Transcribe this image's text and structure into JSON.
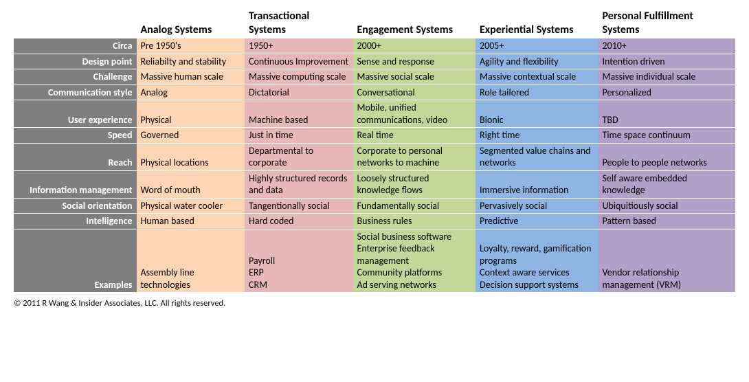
{
  "colors": {
    "label_bg": "#7f7f7f",
    "label_text": "#ffffff",
    "col_bg": [
      "#fcd5b4",
      "#e6b8b7",
      "#c4d79b",
      "#8db4e2",
      "#b1a0c7"
    ],
    "header_bg": "#ffffff",
    "text": "#000000"
  },
  "columns": [
    "Analog Systems",
    "Transactional Systems",
    "Engagement Systems",
    "Experiential Systems",
    "Personal Fulfillment Systems"
  ],
  "rows": [
    {
      "label": "Circa",
      "cells": [
        "Pre 1950's",
        "1950+",
        "2000+",
        "2005+",
        "2010+"
      ]
    },
    {
      "label": "Design point",
      "cells": [
        "Reliabilty and stability",
        "Continuous Improvement",
        "Sense and response",
        "Agility and flexibility",
        "Intention driven"
      ]
    },
    {
      "label": "Challenge",
      "cells": [
        "Massive human scale",
        "Massive computing scale",
        "Massive social scale",
        "Massive contextual scale",
        "Massive individual scale"
      ]
    },
    {
      "label": "Communication style",
      "cells": [
        "Analog",
        "Dictatorial",
        "Conversational",
        "Role tailored",
        "Personalized"
      ]
    },
    {
      "label": "User experience",
      "cells": [
        "Physical",
        "Machine based",
        "Mobile, unified communications, video",
        "Bionic",
        "TBD"
      ]
    },
    {
      "label": "Speed",
      "cells": [
        "Governed",
        "Just in time",
        "Real time",
        "Right time",
        "Time space continuum"
      ]
    },
    {
      "label": "Reach",
      "cells": [
        "Physical locations",
        "Departmental to corporate",
        "Corporate to personal networks to machine",
        "Segmented value chains and networks",
        "People to people networks"
      ]
    },
    {
      "label": "Information management",
      "cells": [
        "Word of mouth",
        "Highly structured records and data",
        "Loosely structured knowledge flows",
        "Immersive information",
        "Self aware embedded knowledge"
      ]
    },
    {
      "label": "Social orientation",
      "cells": [
        "Physical water cooler",
        "Tangentionally social",
        "Fundamentally social",
        "Pervasively social",
        "Ubiquitiously social"
      ]
    },
    {
      "label": "Intelligence",
      "cells": [
        "Human based",
        "Hard coded",
        "Business rules",
        "Predictive",
        "Pattern based"
      ]
    },
    {
      "label": "Examples",
      "cells": [
        "Assembly line technologies",
        "Payroll\nERP\nCRM",
        "Social business software\nEnterprise feedback management\nCommunity platforms\nAd serving networks",
        "Loyalty, reward, gamification programs\nContext aware services\nDecision support systems",
        "Vendor relationship management (VRM)"
      ]
    }
  ],
  "column_widths_pct": [
    17,
    15,
    15,
    17,
    17,
    19
  ],
  "footer": "© 2011 R Wang & Insider Associates, LLC.  All rights reserved."
}
